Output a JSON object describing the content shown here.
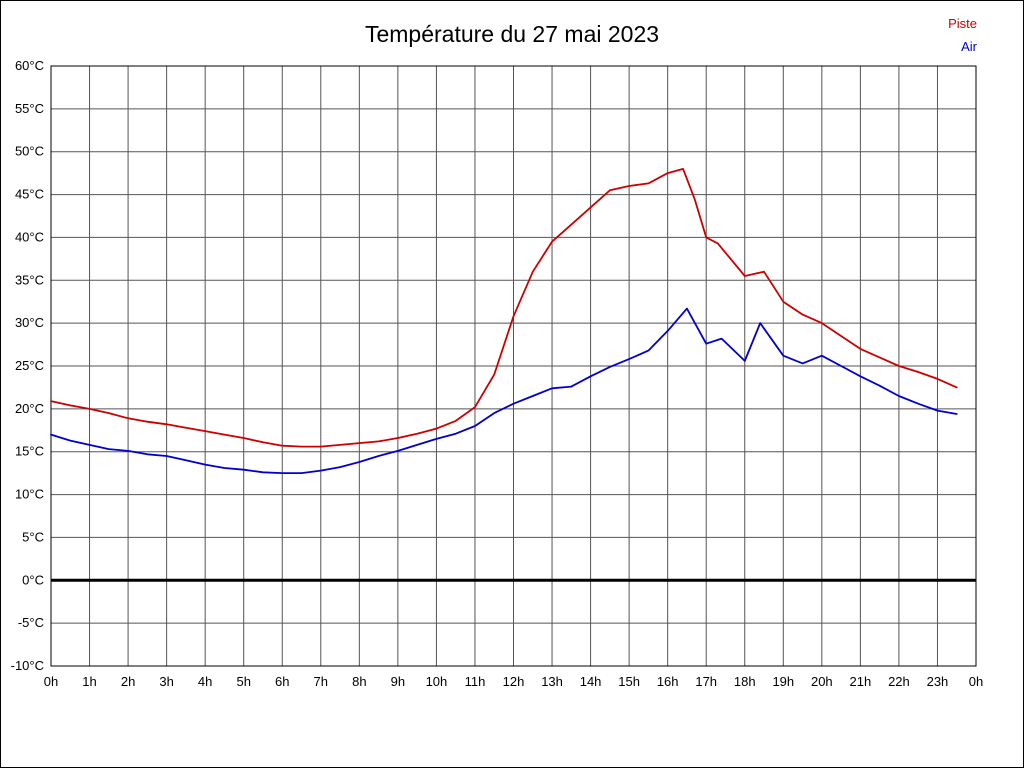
{
  "chart_data": {
    "type": "line",
    "title": "Température du 27 mai 2023",
    "xlabel": "",
    "ylabel": "",
    "xlim": [
      0,
      24
    ],
    "ylim": [
      -10,
      60
    ],
    "grid": true,
    "grid_color": "#555555",
    "zero_line": {
      "value": 0,
      "color": "#000000",
      "width": 3
    },
    "legend_position": "top-right",
    "x_ticks": [
      {
        "v": 0,
        "label": "0h"
      },
      {
        "v": 1,
        "label": "1h"
      },
      {
        "v": 2,
        "label": "2h"
      },
      {
        "v": 3,
        "label": "3h"
      },
      {
        "v": 4,
        "label": "4h"
      },
      {
        "v": 5,
        "label": "5h"
      },
      {
        "v": 6,
        "label": "6h"
      },
      {
        "v": 7,
        "label": "7h"
      },
      {
        "v": 8,
        "label": "8h"
      },
      {
        "v": 9,
        "label": "9h"
      },
      {
        "v": 10,
        "label": "10h"
      },
      {
        "v": 11,
        "label": "11h"
      },
      {
        "v": 12,
        "label": "12h"
      },
      {
        "v": 13,
        "label": "13h"
      },
      {
        "v": 14,
        "label": "14h"
      },
      {
        "v": 15,
        "label": "15h"
      },
      {
        "v": 16,
        "label": "16h"
      },
      {
        "v": 17,
        "label": "17h"
      },
      {
        "v": 18,
        "label": "18h"
      },
      {
        "v": 19,
        "label": "19h"
      },
      {
        "v": 20,
        "label": "20h"
      },
      {
        "v": 21,
        "label": "21h"
      },
      {
        "v": 22,
        "label": "22h"
      },
      {
        "v": 23,
        "label": "23h"
      },
      {
        "v": 24,
        "label": "0h"
      }
    ],
    "y_ticks": [
      {
        "v": 60,
        "label": "60°C"
      },
      {
        "v": 55,
        "label": "55°C"
      },
      {
        "v": 50,
        "label": "50°C"
      },
      {
        "v": 45,
        "label": "45°C"
      },
      {
        "v": 40,
        "label": "40°C"
      },
      {
        "v": 35,
        "label": "35°C"
      },
      {
        "v": 30,
        "label": "30°C"
      },
      {
        "v": 25,
        "label": "25°C"
      },
      {
        "v": 20,
        "label": "20°C"
      },
      {
        "v": 15,
        "label": "15°C"
      },
      {
        "v": 10,
        "label": "10°C"
      },
      {
        "v": 5,
        "label": "5°C"
      },
      {
        "v": 0,
        "label": "0°C"
      },
      {
        "v": -5,
        "label": "-5°C"
      },
      {
        "v": -10,
        "label": "-10°C"
      }
    ],
    "series": [
      {
        "name": "Piste",
        "color": "#cc0000",
        "points": [
          [
            0,
            20.9
          ],
          [
            0.5,
            20.4
          ],
          [
            1,
            20.0
          ],
          [
            1.5,
            19.5
          ],
          [
            2,
            18.9
          ],
          [
            2.5,
            18.5
          ],
          [
            3,
            18.2
          ],
          [
            3.5,
            17.8
          ],
          [
            4,
            17.4
          ],
          [
            4.5,
            17.0
          ],
          [
            5,
            16.6
          ],
          [
            5.5,
            16.1
          ],
          [
            6,
            15.7
          ],
          [
            6.5,
            15.6
          ],
          [
            7,
            15.6
          ],
          [
            7.5,
            15.8
          ],
          [
            8,
            16.0
          ],
          [
            8.5,
            16.2
          ],
          [
            9,
            16.6
          ],
          [
            9.5,
            17.1
          ],
          [
            10,
            17.7
          ],
          [
            10.5,
            18.6
          ],
          [
            11,
            20.2
          ],
          [
            11.5,
            24.0
          ],
          [
            12,
            30.8
          ],
          [
            12.5,
            36.0
          ],
          [
            13,
            39.5
          ],
          [
            13.5,
            41.5
          ],
          [
            14,
            43.5
          ],
          [
            14.5,
            45.5
          ],
          [
            15,
            46.0
          ],
          [
            15.5,
            46.3
          ],
          [
            16,
            47.5
          ],
          [
            16.4,
            48.0
          ],
          [
            16.7,
            44.5
          ],
          [
            17,
            40.0
          ],
          [
            17.3,
            39.3
          ],
          [
            18,
            35.5
          ],
          [
            18.5,
            36.0
          ],
          [
            19,
            32.5
          ],
          [
            19.5,
            31.0
          ],
          [
            20,
            30.0
          ],
          [
            20.5,
            28.5
          ],
          [
            21,
            27.0
          ],
          [
            21.5,
            26.0
          ],
          [
            22,
            25.0
          ],
          [
            22.5,
            24.3
          ],
          [
            23,
            23.5
          ],
          [
            23.5,
            22.5
          ]
        ]
      },
      {
        "name": "Air",
        "color": "#0000cc",
        "points": [
          [
            0,
            17.0
          ],
          [
            0.5,
            16.3
          ],
          [
            1,
            15.8
          ],
          [
            1.5,
            15.3
          ],
          [
            2,
            15.1
          ],
          [
            2.5,
            14.7
          ],
          [
            3,
            14.5
          ],
          [
            3.5,
            14.0
          ],
          [
            4,
            13.5
          ],
          [
            4.5,
            13.1
          ],
          [
            5,
            12.9
          ],
          [
            5.5,
            12.6
          ],
          [
            6,
            12.5
          ],
          [
            6.5,
            12.5
          ],
          [
            7,
            12.8
          ],
          [
            7.5,
            13.2
          ],
          [
            8,
            13.8
          ],
          [
            8.5,
            14.5
          ],
          [
            9,
            15.1
          ],
          [
            9.5,
            15.8
          ],
          [
            10,
            16.5
          ],
          [
            10.5,
            17.1
          ],
          [
            11,
            18.0
          ],
          [
            11.5,
            19.5
          ],
          [
            12,
            20.6
          ],
          [
            12.5,
            21.5
          ],
          [
            13,
            22.4
          ],
          [
            13.5,
            22.6
          ],
          [
            14,
            23.8
          ],
          [
            14.5,
            24.9
          ],
          [
            15,
            25.8
          ],
          [
            15.5,
            26.8
          ],
          [
            16,
            29.1
          ],
          [
            16.5,
            31.7
          ],
          [
            17,
            27.6
          ],
          [
            17.4,
            28.2
          ],
          [
            18,
            25.6
          ],
          [
            18.4,
            30.0
          ],
          [
            19,
            26.2
          ],
          [
            19.5,
            25.3
          ],
          [
            20,
            26.2
          ],
          [
            20.5,
            25.0
          ],
          [
            21,
            23.8
          ],
          [
            21.5,
            22.7
          ],
          [
            22,
            21.5
          ],
          [
            22.5,
            20.6
          ],
          [
            23,
            19.8
          ],
          [
            23.5,
            19.4
          ]
        ]
      }
    ]
  }
}
